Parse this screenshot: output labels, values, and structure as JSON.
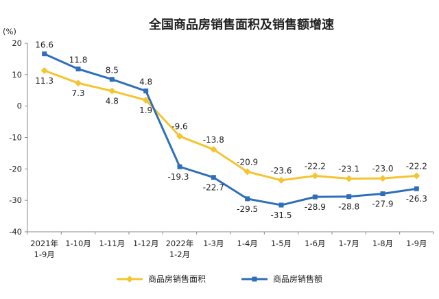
{
  "chart_data": {
    "type": "line",
    "title": "全国商品房销售面积及销售额增速",
    "ylabel": "(%)",
    "ylim": [
      -40,
      20
    ],
    "yticks": [
      20,
      10,
      0,
      -10,
      -20,
      -30,
      -40
    ],
    "categories": [
      [
        "2021年",
        "1-9月"
      ],
      [
        "1-10月"
      ],
      [
        "1-11月"
      ],
      [
        "1-12月"
      ],
      [
        "2022年",
        "1-2月"
      ],
      [
        "1-3月"
      ],
      [
        "1-4月"
      ],
      [
        "1-5月"
      ],
      [
        "1-6月"
      ],
      [
        "1-7月"
      ],
      [
        "1-8月"
      ],
      [
        "1-9月"
      ]
    ],
    "series": [
      {
        "name": "商品房销售面积",
        "color": "#F5C431",
        "marker": "diamond",
        "values": [
          11.3,
          7.3,
          4.8,
          1.9,
          -9.6,
          -13.8,
          -20.9,
          -23.6,
          -22.2,
          -23.1,
          -23.0,
          -22.2
        ],
        "labels": [
          "11.3",
          "7.3",
          "4.8",
          "1.9",
          "-9.6",
          "-13.8",
          "-20.9",
          "-23.6",
          "-22.2",
          "-23.1",
          "-23.0",
          "-22.2"
        ]
      },
      {
        "name": "商品房销售额",
        "color": "#2F6EBA",
        "marker": "square",
        "values": [
          16.6,
          11.8,
          8.5,
          4.8,
          -19.3,
          -22.7,
          -29.5,
          -31.5,
          -28.9,
          -28.8,
          -27.9,
          -26.3
        ],
        "labels": [
          "16.6",
          "11.8",
          "8.5",
          "4.8",
          "-19.3",
          "-22.7",
          "-29.5",
          "-31.5",
          "-28.9",
          "-28.8",
          "-27.9",
          "-26.3"
        ]
      }
    ],
    "legend": "bottom"
  }
}
